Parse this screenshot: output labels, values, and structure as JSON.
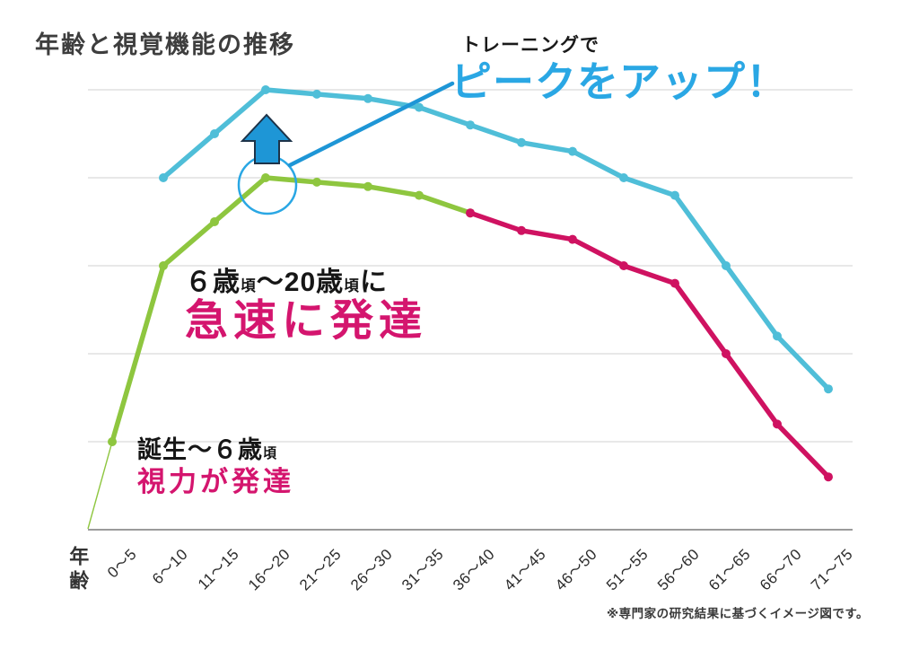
{
  "title": "年齢と視覚機能の推移",
  "footnote": "※専門家の研究結果に基づくイメージ図です。",
  "x_axis": {
    "title": "年齢",
    "categories": [
      "0～5",
      "6～10",
      "11～15",
      "16～20",
      "21～25",
      "26～30",
      "31～35",
      "36～40",
      "41～45",
      "46～50",
      "51～55",
      "56～60",
      "61～65",
      "66～70",
      "71～75"
    ]
  },
  "annotations": {
    "training": {
      "line1": "トレーニングで",
      "line2": "ピークをアップ！"
    },
    "rapid": {
      "big1": "６歳",
      "small1": "頃",
      "big2": "～20歳",
      "small2": "頃",
      "big3": "に",
      "highlight": "急速に発達"
    },
    "birth": {
      "big1": "誕生～６歳",
      "small1": "頃",
      "highlight": "視力が発達"
    }
  },
  "colors": {
    "green": "#8ec63f",
    "pink": "#cf1261",
    "cyan": "#4fbed8",
    "callout_blue": "#1e96d6",
    "arrow_outline": "#1d3349",
    "peak_text_blue": "#2aa7e4",
    "pink_text": "#d4156e",
    "title_gray": "#3e3e3e",
    "grid": "#d9d9d9",
    "axis": "#9b9b9b"
  },
  "chart_data": {
    "type": "line",
    "title": "年齢と視覚機能の推移",
    "xlabel": "年齢",
    "ylabel": "",
    "ylim": [
      0,
      5
    ],
    "grid": "horizontal",
    "gridline_step": 1,
    "legend": "none",
    "categories": [
      "0～5",
      "6～10",
      "11～15",
      "16～20",
      "21～25",
      "26～30",
      "31～35",
      "36～40",
      "41～45",
      "46～50",
      "51～55",
      "56～60",
      "61～65",
      "66～70",
      "71～75"
    ],
    "series": [
      {
        "name": "green",
        "color_key": "green",
        "start_index": 0,
        "leadin_from_origin": true,
        "values": [
          1.0,
          3.0,
          3.5,
          4.0,
          3.95,
          3.9,
          3.8,
          3.6
        ]
      },
      {
        "name": "pink",
        "color_key": "pink",
        "start_index": 7,
        "values": [
          3.6,
          3.4,
          3.3,
          3.0,
          2.8,
          2.0,
          1.2,
          0.6
        ]
      },
      {
        "name": "cyan",
        "color_key": "cyan",
        "start_index": 1,
        "values": [
          4.0,
          4.5,
          5.0,
          4.95,
          4.9,
          4.8,
          4.6,
          4.4,
          4.3,
          4.0,
          3.8,
          3.0,
          2.2,
          1.6
        ]
      }
    ],
    "markers": {
      "highlight_circle_category": "16～20",
      "up_arrow_category": "16～20",
      "callout_line_to": "ピークをアップ！"
    }
  }
}
